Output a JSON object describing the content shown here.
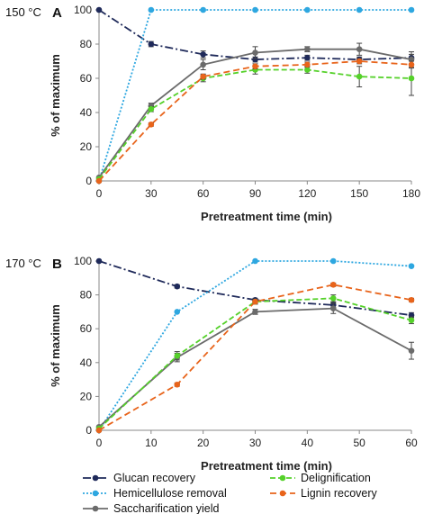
{
  "chart_data": [
    {
      "type": "line",
      "panel": "A",
      "temperature": "150 °C",
      "xlabel": "Pretreatment time (min)",
      "ylabel": "% of maximum",
      "xlim": [
        0,
        180
      ],
      "ylim": [
        0,
        100
      ],
      "xticks": [
        0,
        30,
        60,
        90,
        120,
        150,
        180
      ],
      "yticks": [
        0,
        20,
        40,
        60,
        80,
        100
      ],
      "grid": false,
      "series": [
        {
          "name": "Glucan recovery",
          "color": "#1f2a5a",
          "dash": "dashdot",
          "x": [
            0,
            30,
            60,
            90,
            120,
            150,
            180
          ],
          "y": [
            100,
            80,
            74,
            71,
            72,
            71,
            72
          ],
          "err": [
            0,
            1.5,
            2,
            1.5,
            1.5,
            1.5,
            2
          ]
        },
        {
          "name": "Hemicellulose removal",
          "color": "#2ea7e0",
          "dash": "dot",
          "x": [
            0,
            30,
            60,
            90,
            120,
            150,
            180
          ],
          "y": [
            0,
            100,
            100,
            100,
            100,
            100,
            100
          ],
          "err": [
            0,
            0,
            0,
            0,
            0,
            0,
            0
          ]
        },
        {
          "name": "Saccharification yield",
          "color": "#6b6b6b",
          "dash": "solid",
          "x": [
            0,
            30,
            60,
            90,
            120,
            150,
            180
          ],
          "y": [
            2,
            44,
            68,
            75,
            77,
            77,
            71
          ],
          "err": [
            0,
            1.5,
            3,
            3.5,
            1.5,
            3.5,
            4.5
          ]
        },
        {
          "name": "Delignification",
          "color": "#55d12a",
          "dash": "dash",
          "x": [
            0,
            30,
            60,
            90,
            120,
            150,
            180
          ],
          "y": [
            1,
            42,
            60,
            65,
            65,
            61,
            60
          ],
          "err": [
            0,
            1.5,
            2,
            2.5,
            2,
            6,
            10
          ]
        },
        {
          "name": "Lignin recovery",
          "color": "#e8641b",
          "dash": "longdash",
          "x": [
            0,
            30,
            60,
            90,
            120,
            150,
            180
          ],
          "y": [
            0,
            33,
            61,
            67,
            68,
            70,
            68
          ],
          "err": [
            0,
            1,
            1.5,
            1.5,
            1.5,
            1.5,
            2
          ]
        }
      ]
    },
    {
      "type": "line",
      "panel": "B",
      "temperature": "170 °C",
      "xlabel": "Pretreatment time (min)",
      "ylabel": "% of maximum",
      "xlim": [
        0,
        60
      ],
      "ylim": [
        0,
        100
      ],
      "xticks": [
        0,
        10,
        20,
        30,
        40,
        50,
        60
      ],
      "yticks": [
        0,
        20,
        40,
        60,
        80,
        100
      ],
      "grid": false,
      "series": [
        {
          "name": "Glucan recovery",
          "color": "#1f2a5a",
          "dash": "dashdot",
          "x": [
            0,
            15,
            30,
            45,
            60
          ],
          "y": [
            100,
            85,
            77,
            74,
            68
          ],
          "err": [
            0,
            1,
            1,
            1.5,
            1.5
          ]
        },
        {
          "name": "Hemicellulose removal",
          "color": "#2ea7e0",
          "dash": "dot",
          "x": [
            0,
            15,
            30,
            45,
            60
          ],
          "y": [
            0,
            70,
            100,
            100,
            97
          ],
          "err": [
            0,
            0,
            0,
            0,
            0
          ]
        },
        {
          "name": "Saccharification yield",
          "color": "#6b6b6b",
          "dash": "solid",
          "x": [
            0,
            15,
            30,
            45,
            60
          ],
          "y": [
            2,
            43,
            70,
            72,
            47
          ],
          "err": [
            0,
            2.5,
            1.5,
            3,
            5
          ]
        },
        {
          "name": "Delignification",
          "color": "#55d12a",
          "dash": "dash",
          "x": [
            0,
            15,
            30,
            45,
            60
          ],
          "y": [
            1,
            44,
            76,
            78,
            65
          ],
          "err": [
            0,
            2.5,
            1.5,
            2,
            2
          ]
        },
        {
          "name": "Lignin recovery",
          "color": "#e8641b",
          "dash": "longdash",
          "x": [
            0,
            15,
            30,
            45,
            60
          ],
          "y": [
            0,
            27,
            76,
            86,
            77
          ],
          "err": [
            0,
            1,
            1,
            1,
            1
          ]
        }
      ]
    }
  ],
  "legend": {
    "placement": "bottom",
    "items": [
      {
        "label": "Glucan recovery",
        "color": "#1f2a5a",
        "dash": "dashdot"
      },
      {
        "label": "Delignification",
        "color": "#55d12a",
        "dash": "dash"
      },
      {
        "label": "Hemicellulose removal",
        "color": "#2ea7e0",
        "dash": "dot"
      },
      {
        "label": "Lignin recovery",
        "color": "#e8641b",
        "dash": "longdash"
      },
      {
        "label": "Saccharification yield",
        "color": "#6b6b6b",
        "dash": "solid"
      }
    ]
  }
}
